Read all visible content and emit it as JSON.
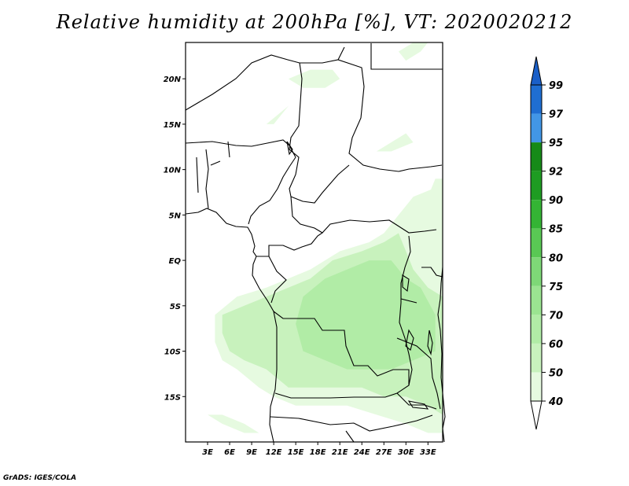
{
  "title": "Relative humidity at 200hPa [%], VT: 2020020212",
  "credit": "GrADS: IGES/COLA",
  "map": {
    "lon_range": [
      0,
      35
    ],
    "lat_range": [
      -20,
      24
    ],
    "lat_ticks": [
      {
        "value": 20,
        "label": "20N"
      },
      {
        "value": 15,
        "label": "15N"
      },
      {
        "value": 10,
        "label": "10N"
      },
      {
        "value": 5,
        "label": "5N"
      },
      {
        "value": 0,
        "label": "EQ"
      },
      {
        "value": -5,
        "label": "5S"
      },
      {
        "value": -10,
        "label": "10S"
      },
      {
        "value": -15,
        "label": "15S"
      }
    ],
    "lon_ticks": [
      {
        "value": 3,
        "label": "3E"
      },
      {
        "value": 6,
        "label": "6E"
      },
      {
        "value": 9,
        "label": "9E"
      },
      {
        "value": 12,
        "label": "12E"
      },
      {
        "value": 15,
        "label": "15E"
      },
      {
        "value": 18,
        "label": "18E"
      },
      {
        "value": 21,
        "label": "21E"
      },
      {
        "value": 24,
        "label": "24E"
      },
      {
        "value": 27,
        "label": "27E"
      },
      {
        "value": 30,
        "label": "30E"
      },
      {
        "value": 33,
        "label": "33E"
      }
    ]
  },
  "colorbar": {
    "levels": [
      {
        "label": "40",
        "color": "#ffffff"
      },
      {
        "label": "50",
        "color": "#e6fae0"
      },
      {
        "label": "60",
        "color": "#c8f2bd"
      },
      {
        "label": "70",
        "color": "#b1eca6"
      },
      {
        "label": "75",
        "color": "#9be491"
      },
      {
        "label": "80",
        "color": "#7ed877"
      },
      {
        "label": "85",
        "color": "#59c854"
      },
      {
        "label": "90",
        "color": "#34b434"
      },
      {
        "label": "92",
        "color": "#1e9c22"
      },
      {
        "label": "95",
        "color": "#168a18"
      },
      {
        "label": "97",
        "color": "#4296e6"
      },
      {
        "label": "99",
        "color": "#1f6ed2"
      }
    ],
    "top_color": "#1a5fc8"
  },
  "humidity_areas": [
    {
      "level": "50",
      "color": "#e6fae0",
      "polygon": [
        [
          4,
          -6
        ],
        [
          7,
          -4
        ],
        [
          11,
          -3
        ],
        [
          14,
          -2
        ],
        [
          17,
          -1
        ],
        [
          21,
          1
        ],
        [
          25,
          2
        ],
        [
          27,
          3
        ],
        [
          29,
          5
        ],
        [
          31,
          7
        ],
        [
          34,
          8
        ],
        [
          35,
          9
        ],
        [
          35,
          -19
        ],
        [
          33,
          -19
        ],
        [
          30,
          -18
        ],
        [
          26,
          -17
        ],
        [
          22,
          -16
        ],
        [
          18,
          -16
        ],
        [
          15,
          -16
        ],
        [
          12,
          -15
        ],
        [
          10,
          -14
        ],
        [
          7,
          -12
        ],
        [
          5,
          -11
        ],
        [
          4,
          -9
        ]
      ]
    },
    {
      "level": "60",
      "color": "#c8f2bd",
      "polygon": [
        [
          5,
          -6
        ],
        [
          8,
          -5
        ],
        [
          11,
          -4
        ],
        [
          14,
          -3
        ],
        [
          17,
          -2
        ],
        [
          20,
          0
        ],
        [
          24,
          1
        ],
        [
          27,
          2
        ],
        [
          29,
          3
        ],
        [
          30,
          1
        ],
        [
          31,
          -1
        ],
        [
          33,
          -3
        ],
        [
          35,
          -4
        ],
        [
          35,
          -17
        ],
        [
          33,
          -16
        ],
        [
          30,
          -15
        ],
        [
          27,
          -15
        ],
        [
          24,
          -14
        ],
        [
          20,
          -14
        ],
        [
          17,
          -14
        ],
        [
          14,
          -14
        ],
        [
          11,
          -12
        ],
        [
          8,
          -11
        ],
        [
          6,
          -10
        ],
        [
          5,
          -8
        ]
      ]
    },
    {
      "level": "70",
      "color": "#b1eca6",
      "polygon": [
        [
          16,
          -4
        ],
        [
          19,
          -2
        ],
        [
          22,
          -1
        ],
        [
          25,
          0
        ],
        [
          28,
          0
        ],
        [
          30,
          -2
        ],
        [
          32,
          -3
        ],
        [
          34,
          -6
        ],
        [
          34,
          -10
        ],
        [
          31,
          -11
        ],
        [
          28,
          -12
        ],
        [
          25,
          -12
        ],
        [
          22,
          -12
        ],
        [
          19,
          -11
        ],
        [
          16,
          -10
        ],
        [
          15,
          -7
        ]
      ]
    },
    {
      "level": "50",
      "color": "#e6fae0",
      "polygon": [
        [
          33,
          7
        ],
        [
          34,
          6
        ],
        [
          35,
          5
        ],
        [
          35,
          9
        ],
        [
          34,
          9
        ]
      ]
    },
    {
      "level": "50",
      "color": "#e6fae0",
      "polygon": [
        [
          14,
          20
        ],
        [
          17,
          21
        ],
        [
          20,
          21
        ],
        [
          21,
          20
        ],
        [
          19,
          19
        ],
        [
          16,
          19
        ]
      ]
    },
    {
      "level": "50",
      "color": "#e6fae0",
      "polygon": [
        [
          11,
          15
        ],
        [
          14,
          17
        ],
        [
          16,
          19
        ],
        [
          15,
          18
        ],
        [
          12,
          15
        ]
      ]
    },
    {
      "level": "50",
      "color": "#e6fae0",
      "polygon": [
        [
          26,
          12
        ],
        [
          28,
          13
        ],
        [
          30,
          14
        ],
        [
          31,
          13
        ],
        [
          28,
          12
        ]
      ]
    },
    {
      "level": "50",
      "color": "#e6fae0",
      "polygon": [
        [
          29,
          23
        ],
        [
          31,
          24
        ],
        [
          33,
          24
        ],
        [
          32,
          23
        ],
        [
          30,
          22
        ]
      ]
    },
    {
      "level": "50",
      "color": "#e6fae0",
      "polygon": [
        [
          3,
          -17
        ],
        [
          5,
          -18
        ],
        [
          8,
          -19
        ],
        [
          10,
          -19
        ],
        [
          8,
          -18
        ],
        [
          5,
          -17
        ]
      ]
    }
  ]
}
